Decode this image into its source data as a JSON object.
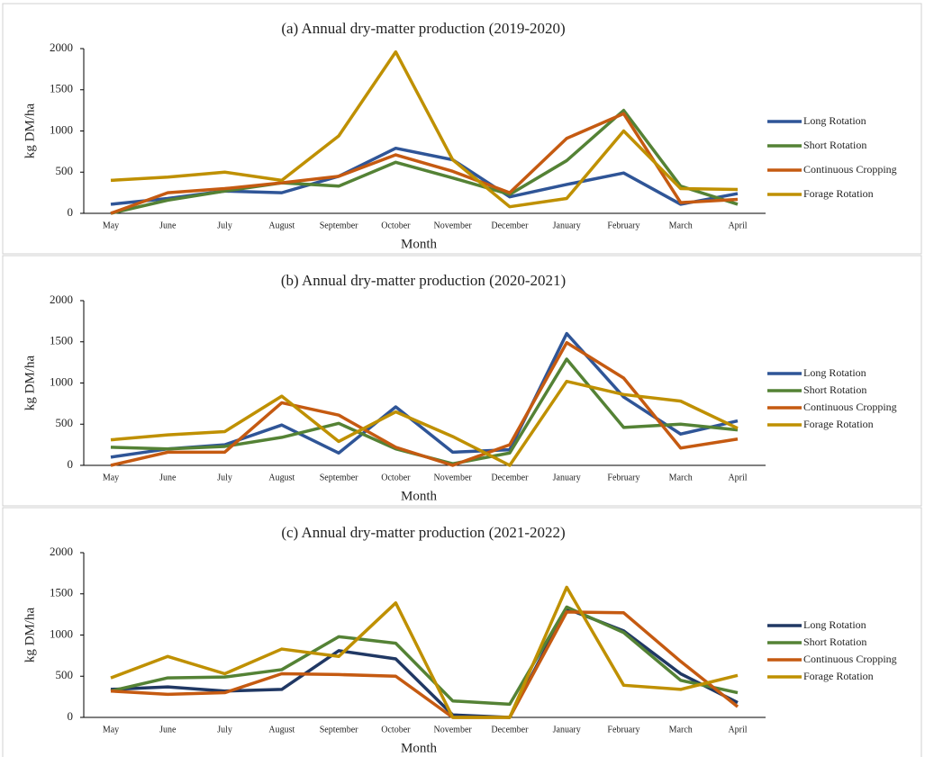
{
  "chart_data": [
    {
      "type": "line",
      "title": "(a) Annual dry-matter production (2019-2020)",
      "y_label": "kg DM/ha",
      "x_label": "Month",
      "categories": [
        "May",
        "June",
        "July",
        "August",
        "September",
        "October",
        "November",
        "December",
        "January",
        "February",
        "March",
        "April"
      ],
      "ylim": [
        0,
        2000
      ],
      "yticks": [
        0,
        500,
        1000,
        1500,
        2000
      ],
      "series": [
        {
          "name": "Long Rotation",
          "color": "#2f5597",
          "values": [
            110,
            180,
            270,
            250,
            450,
            790,
            650,
            200,
            350,
            490,
            110,
            240
          ]
        },
        {
          "name": "Short Rotation",
          "color": "#548235",
          "values": [
            0,
            160,
            270,
            370,
            330,
            620,
            430,
            230,
            640,
            1250,
            330,
            110
          ]
        },
        {
          "name": "Continuous Cropping",
          "color": "#c55a11",
          "values": [
            0,
            250,
            300,
            370,
            450,
            710,
            510,
            250,
            910,
            1210,
            130,
            170
          ]
        },
        {
          "name": "Forage Rotation",
          "color": "#bf9000",
          "values": [
            400,
            440,
            500,
            400,
            940,
            1960,
            650,
            80,
            180,
            1000,
            300,
            290
          ]
        }
      ]
    },
    {
      "type": "line",
      "title": "(b) Annual dry-matter production (2020-2021)",
      "y_label": "kg DM/ha",
      "x_label": "Month",
      "categories": [
        "May",
        "June",
        "July",
        "August",
        "September",
        "October",
        "November",
        "December",
        "January",
        "February",
        "March",
        "April"
      ],
      "ylim": [
        0,
        2000
      ],
      "yticks": [
        0,
        500,
        1000,
        1500,
        2000
      ],
      "series": [
        {
          "name": "Long Rotation",
          "color": "#2f5597",
          "values": [
            100,
            200,
            250,
            490,
            150,
            710,
            160,
            190,
            1600,
            830,
            380,
            540
          ]
        },
        {
          "name": "Short Rotation",
          "color": "#548235",
          "values": [
            220,
            200,
            230,
            340,
            510,
            200,
            20,
            150,
            1290,
            460,
            500,
            430
          ]
        },
        {
          "name": "Continuous Cropping",
          "color": "#c55a11",
          "values": [
            0,
            160,
            160,
            760,
            610,
            220,
            0,
            250,
            1490,
            1060,
            210,
            320
          ]
        },
        {
          "name": "Forage Rotation",
          "color": "#bf9000",
          "values": [
            310,
            370,
            410,
            840,
            290,
            650,
            350,
            0,
            1020,
            860,
            780,
            450
          ]
        }
      ]
    },
    {
      "type": "line",
      "title": "(c) Annual dry-matter production (2021-2022)",
      "y_label": "kg DM/ha",
      "x_label": "Month",
      "categories": [
        "May",
        "June",
        "July",
        "August",
        "September",
        "October",
        "November",
        "December",
        "January",
        "February",
        "March",
        "April"
      ],
      "ylim": [
        0,
        2000
      ],
      "yticks": [
        0,
        500,
        1000,
        1500,
        2000
      ],
      "series": [
        {
          "name": "Long Rotation",
          "color": "#203864",
          "values": [
            340,
            370,
            320,
            340,
            810,
            710,
            30,
            0,
            1320,
            1050,
            530,
            180
          ]
        },
        {
          "name": "Short Rotation",
          "color": "#548235",
          "values": [
            320,
            480,
            490,
            580,
            980,
            900,
            200,
            160,
            1340,
            1030,
            450,
            300
          ]
        },
        {
          "name": "Continuous Cropping",
          "color": "#c55a11",
          "values": [
            320,
            280,
            300,
            530,
            520,
            500,
            0,
            0,
            1280,
            1270,
            680,
            130
          ]
        },
        {
          "name": "Forage Rotation",
          "color": "#bf9000",
          "values": [
            480,
            740,
            530,
            830,
            740,
            1390,
            0,
            0,
            1580,
            390,
            340,
            510
          ]
        }
      ]
    }
  ]
}
